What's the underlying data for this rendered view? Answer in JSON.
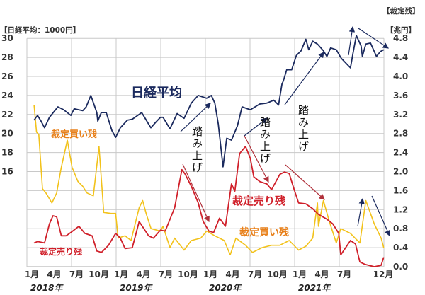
{
  "chart_data": {
    "type": "line",
    "left_axis_label": "【日経平均：1000円】",
    "right_axis_label_1": "【裁定残】",
    "right_axis_label_2": "【兆円】",
    "left_ticks": [
      "30",
      "28",
      "26",
      "24",
      "22",
      "20",
      "18",
      "16"
    ],
    "left_tick_values": [
      30,
      28,
      26,
      24,
      22,
      20,
      18,
      16
    ],
    "right_ticks": [
      "4.8",
      "4.4",
      "4.0",
      "3.6",
      "3.2",
      "2.8",
      "2.4",
      "2.0",
      "1.6",
      "1.2",
      "0.8",
      "0.4",
      "0.0"
    ],
    "right_tick_values": [
      4.8,
      4.4,
      4.0,
      3.6,
      3.2,
      2.8,
      2.4,
      2.0,
      1.6,
      1.2,
      0.8,
      0.4,
      0.0
    ],
    "right_ylim": [
      0,
      4.8
    ],
    "left_ylim": [
      6,
      30
    ],
    "xlim": [
      "2018-01-01",
      "2022-01-01"
    ],
    "grid": true,
    "x_ticks": [
      {
        "label": "1月",
        "date": "2018-01-01"
      },
      {
        "label": "4月",
        "date": "2018-04-01"
      },
      {
        "label": "7月",
        "date": "2018-07-01"
      },
      {
        "label": "10月",
        "date": "2018-10-01"
      },
      {
        "label": "1月",
        "date": "2019-01-01"
      },
      {
        "label": "4月",
        "date": "2019-04-01"
      },
      {
        "label": "7月",
        "date": "2019-07-01"
      },
      {
        "label": "10月",
        "date": "2019-10-01"
      },
      {
        "label": "1月",
        "date": "2020-01-01"
      },
      {
        "label": "4月",
        "date": "2020-04-01"
      },
      {
        "label": "7月",
        "date": "2020-07-01"
      },
      {
        "label": "10月",
        "date": "2020-10-01"
      },
      {
        "label": "1月",
        "date": "2021-01-01"
      },
      {
        "label": "4月",
        "date": "2021-04-01"
      },
      {
        "label": "7月",
        "date": "2021-07-01"
      },
      {
        "label": "12月",
        "date": "2021-12-31"
      }
    ],
    "year_labels": [
      "2018年",
      "2019年",
      "2020年",
      "2021年"
    ],
    "series": [
      {
        "name": "日経平均",
        "axis": "left",
        "color": "#1b2a5e",
        "points": [
          [
            "2018-01-30",
            21.4
          ],
          [
            "2018-02-14",
            21.9
          ],
          [
            "2018-02-28",
            21.3
          ],
          [
            "2018-03-12",
            20.6
          ],
          [
            "2018-04-02",
            21.7
          ],
          [
            "2018-05-06",
            22.8
          ],
          [
            "2018-05-29",
            22.5
          ],
          [
            "2018-06-28",
            21.9
          ],
          [
            "2018-07-12",
            22.6
          ],
          [
            "2018-08-16",
            22.4
          ],
          [
            "2018-08-30",
            22.8
          ],
          [
            "2018-09-19",
            24.0
          ],
          [
            "2018-10-13",
            22.2
          ],
          [
            "2018-10-17",
            21.3
          ],
          [
            "2018-11-01",
            22.2
          ],
          [
            "2018-11-21",
            22.2
          ],
          [
            "2018-12-14",
            20.3
          ],
          [
            "2018-12-29",
            19.6
          ],
          [
            "2019-01-18",
            20.6
          ],
          [
            "2019-02-16",
            21.4
          ],
          [
            "2019-03-06",
            21.5
          ],
          [
            "2019-04-14",
            22.2
          ],
          [
            "2019-05-21",
            20.6
          ],
          [
            "2019-06-11",
            21.2
          ],
          [
            "2019-06-30",
            21.7
          ],
          [
            "2019-07-10",
            21.7
          ],
          [
            "2019-08-08",
            20.5
          ],
          [
            "2019-09-07",
            22.1
          ],
          [
            "2019-10-05",
            21.6
          ],
          [
            "2019-11-04",
            23.2
          ],
          [
            "2019-12-02",
            24.0
          ],
          [
            "2020-01-06",
            23.7
          ],
          [
            "2020-01-25",
            24.0
          ],
          [
            "2020-02-09",
            23.2
          ],
          [
            "2020-02-23",
            21.0
          ],
          [
            "2020-03-12",
            16.5
          ],
          [
            "2020-03-27",
            19.5
          ],
          [
            "2020-04-16",
            19.3
          ],
          [
            "2020-05-10",
            20.8
          ],
          [
            "2020-05-29",
            22.8
          ],
          [
            "2020-07-02",
            22.5
          ],
          [
            "2020-08-10",
            23.1
          ],
          [
            "2020-09-09",
            23.2
          ],
          [
            "2020-10-07",
            23.5
          ],
          [
            "2020-10-26",
            23.0
          ],
          [
            "2020-11-10",
            25.2
          ],
          [
            "2020-11-15",
            25.5
          ],
          [
            "2020-11-29",
            26.7
          ],
          [
            "2020-12-19",
            26.7
          ],
          [
            "2021-01-08",
            28.2
          ],
          [
            "2021-01-27",
            28.7
          ],
          [
            "2021-02-16",
            29.9
          ],
          [
            "2021-02-28",
            28.8
          ],
          [
            "2021-03-14",
            29.7
          ],
          [
            "2021-04-03",
            29.4
          ],
          [
            "2021-04-27",
            28.7
          ],
          [
            "2021-05-11",
            28.1
          ],
          [
            "2021-05-26",
            29.0
          ],
          [
            "2021-06-19",
            28.8
          ],
          [
            "2021-07-09",
            27.9
          ],
          [
            "2021-07-28",
            27.4
          ],
          [
            "2021-08-16",
            26.9
          ],
          [
            "2021-08-26",
            28.4
          ],
          [
            "2021-09-10",
            30.3
          ],
          [
            "2021-09-29",
            29.2
          ],
          [
            "2021-10-04",
            28.1
          ],
          [
            "2021-10-18",
            29.4
          ],
          [
            "2021-11-07",
            29.5
          ],
          [
            "2021-12-01",
            28.1
          ],
          [
            "2021-12-16",
            28.6
          ],
          [
            "2021-12-30",
            28.8
          ]
        ]
      },
      {
        "name": "裁定買い残",
        "axis": "right",
        "color": "#f2c21b",
        "points": [
          [
            "2018-01-30",
            3.4
          ],
          [
            "2018-02-10",
            2.83
          ],
          [
            "2018-02-19",
            2.78
          ],
          [
            "2018-03-04",
            1.64
          ],
          [
            "2018-03-18",
            1.55
          ],
          [
            "2018-04-12",
            1.34
          ],
          [
            "2018-05-01",
            1.55
          ],
          [
            "2018-05-20",
            2.09
          ],
          [
            "2018-06-14",
            2.66
          ],
          [
            "2018-07-03",
            2.09
          ],
          [
            "2018-07-27",
            1.79
          ],
          [
            "2018-08-16",
            1.69
          ],
          [
            "2018-09-04",
            1.55
          ],
          [
            "2018-09-29",
            1.49
          ],
          [
            "2018-10-22",
            2.53
          ],
          [
            "2018-11-11",
            1.14
          ],
          [
            "2018-12-10",
            1.12
          ],
          [
            "2018-12-29",
            1.12
          ],
          [
            "2019-01-09",
            0.6
          ],
          [
            "2019-02-07",
            0.65
          ],
          [
            "2019-03-01",
            0.55
          ],
          [
            "2019-04-04",
            1.24
          ],
          [
            "2019-04-18",
            1.39
          ],
          [
            "2019-05-03",
            1.1
          ],
          [
            "2019-05-22",
            0.8
          ],
          [
            "2019-06-30",
            0.75
          ],
          [
            "2019-07-10",
            0.85
          ],
          [
            "2019-08-08",
            0.4
          ],
          [
            "2019-08-27",
            0.6
          ],
          [
            "2019-10-05",
            0.35
          ],
          [
            "2019-11-04",
            0.55
          ],
          [
            "2019-12-12",
            0.6
          ],
          [
            "2020-01-06",
            0.75
          ],
          [
            "2020-02-09",
            0.65
          ],
          [
            "2020-03-17",
            0.55
          ],
          [
            "2020-04-11",
            0.25
          ],
          [
            "2020-05-04",
            0.6
          ],
          [
            "2020-06-13",
            0.45
          ],
          [
            "2020-07-11",
            0.3
          ],
          [
            "2020-08-19",
            0.4
          ],
          [
            "2020-09-28",
            0.45
          ],
          [
            "2020-11-01",
            0.45
          ],
          [
            "2020-12-09",
            0.55
          ],
          [
            "2021-01-17",
            0.35
          ],
          [
            "2021-02-16",
            0.43
          ],
          [
            "2021-03-14",
            0.6
          ],
          [
            "2021-04-03",
            1.34
          ],
          [
            "2021-04-07",
            0.85
          ],
          [
            "2021-04-27",
            1.39
          ],
          [
            "2021-05-21",
            0.95
          ],
          [
            "2021-06-19",
            0.5
          ],
          [
            "2021-07-07",
            0.8
          ],
          [
            "2021-08-16",
            0.7
          ],
          [
            "2021-09-24",
            0.5
          ],
          [
            "2021-10-18",
            1.39
          ],
          [
            "2021-11-22",
            0.9
          ],
          [
            "2021-12-20",
            0.6
          ],
          [
            "2021-12-30",
            0.4
          ]
        ]
      },
      {
        "name": "裁定売り残",
        "axis": "right",
        "color": "#d0202a",
        "points": [
          [
            "2018-01-30",
            0.5
          ],
          [
            "2018-02-14",
            0.53
          ],
          [
            "2018-03-12",
            0.5
          ],
          [
            "2018-04-02",
            0.9
          ],
          [
            "2018-04-16",
            1.07
          ],
          [
            "2018-05-01",
            1.05
          ],
          [
            "2018-05-20",
            0.65
          ],
          [
            "2018-06-09",
            0.65
          ],
          [
            "2018-06-28",
            0.72
          ],
          [
            "2018-08-01",
            0.85
          ],
          [
            "2018-08-25",
            0.7
          ],
          [
            "2018-09-24",
            0.65
          ],
          [
            "2018-10-13",
            0.33
          ],
          [
            "2018-11-02",
            0.3
          ],
          [
            "2018-11-30",
            0.45
          ],
          [
            "2018-12-29",
            0.7
          ],
          [
            "2019-01-18",
            0.6
          ],
          [
            "2019-02-07",
            0.38
          ],
          [
            "2019-03-06",
            0.4
          ],
          [
            "2019-04-04",
            0.95
          ],
          [
            "2019-05-12",
            0.65
          ],
          [
            "2019-06-01",
            0.6
          ],
          [
            "2019-06-30",
            0.77
          ],
          [
            "2019-07-19",
            0.75
          ],
          [
            "2019-08-27",
            1.24
          ],
          [
            "2019-09-26",
            2.04
          ],
          [
            "2019-10-10",
            1.94
          ],
          [
            "2019-11-04",
            1.69
          ],
          [
            "2019-12-02",
            1.34
          ],
          [
            "2019-12-22",
            0.95
          ],
          [
            "2020-01-15",
            0.75
          ],
          [
            "2020-02-04",
            0.72
          ],
          [
            "2020-02-28",
            1.02
          ],
          [
            "2020-03-22",
            0.85
          ],
          [
            "2020-04-16",
            1.74
          ],
          [
            "2020-04-30",
            1.59
          ],
          [
            "2020-05-19",
            2.38
          ],
          [
            "2020-06-13",
            2.53
          ],
          [
            "2020-07-02",
            2.28
          ],
          [
            "2020-07-16",
            1.89
          ],
          [
            "2020-08-10",
            1.79
          ],
          [
            "2020-09-09",
            1.74
          ],
          [
            "2020-09-28",
            1.62
          ],
          [
            "2020-11-01",
            1.94
          ],
          [
            "2020-11-20",
            1.99
          ],
          [
            "2020-12-09",
            1.96
          ],
          [
            "2020-12-28",
            1.64
          ],
          [
            "2021-01-17",
            1.34
          ],
          [
            "2021-02-16",
            1.32
          ],
          [
            "2021-03-14",
            1.22
          ],
          [
            "2021-04-07",
            1.1
          ],
          [
            "2021-05-11",
            1.0
          ],
          [
            "2021-06-05",
            0.9
          ],
          [
            "2021-06-29",
            0.7
          ],
          [
            "2021-07-07",
            0.25
          ],
          [
            "2021-08-16",
            0.55
          ],
          [
            "2021-09-06",
            0.48
          ],
          [
            "2021-09-24",
            0.1
          ],
          [
            "2021-10-14",
            0.05
          ],
          [
            "2021-11-22",
            0.0
          ],
          [
            "2021-12-20",
            0.03
          ],
          [
            "2021-12-30",
            0.2
          ]
        ]
      }
    ],
    "annotations": {
      "nikkei": "日経平均",
      "buy_1": "裁定買い残",
      "buy_2": "裁定買い残",
      "sell_1": "裁定売り残",
      "sell_2": "裁定売り残",
      "squeeze_1": "踏み上げ",
      "squeeze_2": "踏み上げ",
      "squeeze_3": "踏み上げ"
    },
    "colors": {
      "nikkei": "#1b2a5e",
      "buy": "#f2c21b",
      "buy_text": "#e8801a",
      "sell": "#d0202a",
      "grid": "#c8c8c8"
    }
  }
}
